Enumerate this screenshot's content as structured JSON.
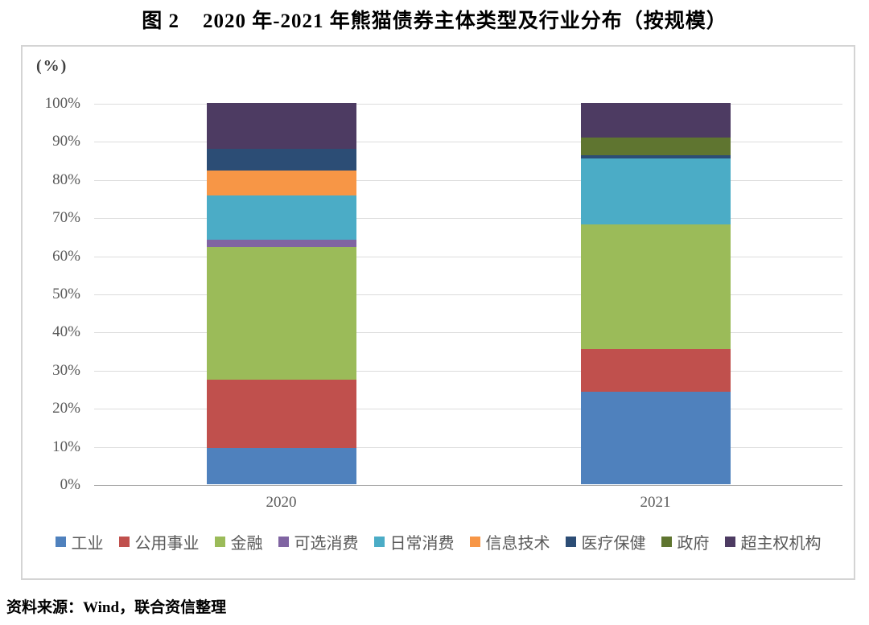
{
  "title": "图 2    2020 年-2021 年熊猫债券主体类型及行业分布（按规模）",
  "source_note": "资料来源：Wind，联合资信整理",
  "chart_data": {
    "type": "bar",
    "subtype": "stacked-percent",
    "title": "图 2 2020 年-2021 年熊猫债券主体类型及行业分布（按规模）",
    "unit_label": "(%)",
    "categories": [
      "2020",
      "2021"
    ],
    "series": [
      {
        "name": "工业",
        "color": "#4F81BD",
        "values": [
          9.4,
          24.3
        ]
      },
      {
        "name": "公用事业",
        "color": "#C0504D",
        "values": [
          18.1,
          11.2
        ]
      },
      {
        "name": "金融",
        "color": "#9BBB59",
        "values": [
          34.7,
          32.6
        ]
      },
      {
        "name": "可选消费",
        "color": "#8064A2",
        "values": [
          1.9,
          0
        ]
      },
      {
        "name": "日常消费",
        "color": "#4BACC6",
        "values": [
          11.6,
          17.4
        ]
      },
      {
        "name": "信息技术",
        "color": "#F79646",
        "values": [
          6.6,
          0
        ]
      },
      {
        "name": "医疗保健",
        "color": "#2C4D75",
        "values": [
          5.7,
          0.9
        ]
      },
      {
        "name": "政府",
        "color": "#5F7530",
        "values": [
          0,
          4.5
        ]
      },
      {
        "name": "超主权机构",
        "color": "#4D3B62",
        "values": [
          12.0,
          9.1
        ]
      }
    ],
    "y_ticks": [
      "0%",
      "10%",
      "20%",
      "30%",
      "40%",
      "50%",
      "60%",
      "70%",
      "80%",
      "90%",
      "100%"
    ],
    "ylim": [
      0,
      100
    ],
    "grid": true,
    "legend_position": "bottom"
  },
  "colors": {
    "gridline": "#dcdcdc",
    "axis_line": "#a6a6a6",
    "tick_text": "#595959",
    "frame_border": "#d4d4d4"
  }
}
